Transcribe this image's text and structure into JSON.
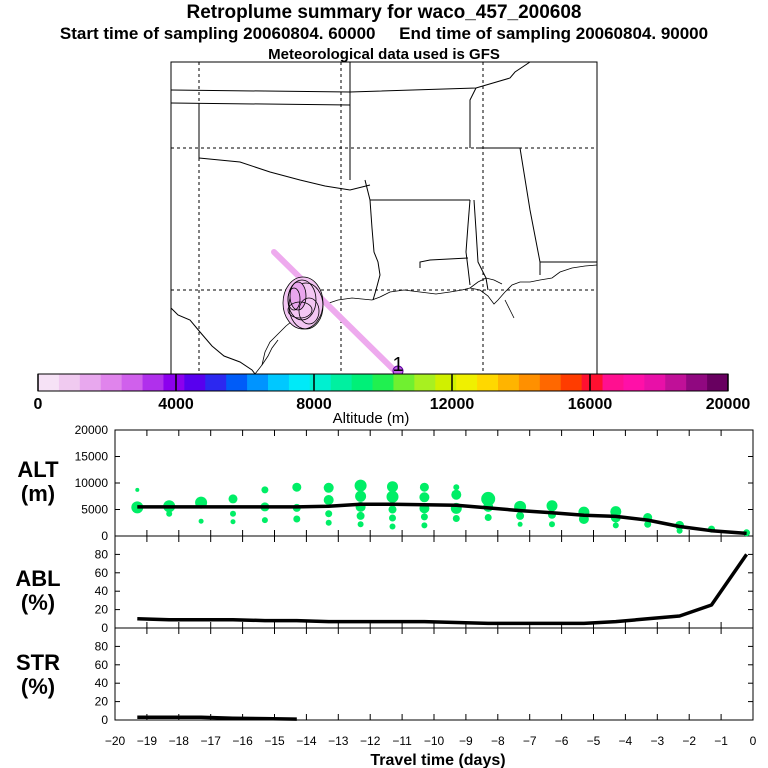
{
  "header": {
    "title": "Retroplume summary for waco_457_200608",
    "sampling_line": "Start time of sampling 20060804. 60000     End time of sampling 20060804. 90000",
    "met_line": "Meteorological data used is GFS"
  },
  "colors": {
    "ramp": [
      "#f6e2f6",
      "#f0caf0",
      "#e8a8ee",
      "#e084ec",
      "#d060ec",
      "#b030ec",
      "#8c00ee",
      "#5800ee",
      "#2c28f0",
      "#005cf8",
      "#0094ff",
      "#00c8ff",
      "#00eaf8",
      "#00f0d0",
      "#00f0a0",
      "#00f078",
      "#20f050",
      "#70f030",
      "#a8f020",
      "#d0f000",
      "#f0f000",
      "#ffd800",
      "#ffb400",
      "#ff9000",
      "#ff6800",
      "#ff3c00",
      "#ff1030",
      "#ff1090",
      "#ff10a8",
      "#e810a8",
      "#c01098",
      "#900880",
      "#680060"
    ],
    "marker": "#00ee66",
    "plume": "#eeaaee"
  },
  "chart_data": [
    {
      "type": "map",
      "title": "Retroplume trajectory map",
      "receptor_label": "1",
      "features": [
        "state borders",
        "coastline",
        "latitude/longitude grid (dashed)",
        "plume trace",
        "plume clusters"
      ]
    },
    {
      "type": "colorbar",
      "xlabel": "Altitude (m)",
      "range": [
        0,
        20000
      ],
      "tick_labels": [
        "0",
        "4000",
        "8000",
        "12000",
        "16000",
        "20000"
      ],
      "tick_values": [
        0,
        4000,
        8000,
        12000,
        16000,
        20000
      ]
    },
    {
      "type": "scatter",
      "panel": "ALT",
      "ylabel": [
        "ALT",
        "(m)"
      ],
      "xlim": [
        -20,
        0
      ],
      "ylim": [
        0,
        20000
      ],
      "yticks": [
        0,
        5000,
        10000,
        15000,
        20000
      ],
      "ytick_labels": [
        "0",
        "5000",
        "10000",
        "15000",
        "20000"
      ],
      "mean_line": {
        "x": [
          -19.3,
          -18.3,
          -17.3,
          -16.3,
          -15.3,
          -14.3,
          -13.3,
          -12.3,
          -11.3,
          -10.3,
          -9.3,
          -8.3,
          -7.3,
          -6.3,
          -5.3,
          -4.3,
          -3.3,
          -2.3,
          -1.3,
          -0.2
        ],
        "y": [
          5500,
          5500,
          5500,
          5500,
          5500,
          5500,
          5600,
          6000,
          6000,
          5900,
          5800,
          5300,
          4800,
          4400,
          3900,
          3700,
          3000,
          1800,
          1000,
          500
        ]
      },
      "points": [
        {
          "x": -19.3,
          "y": 5400,
          "r": 6
        },
        {
          "x": -19.3,
          "y": 8700,
          "r": 2
        },
        {
          "x": -18.3,
          "y": 5600,
          "r": 6
        },
        {
          "x": -18.3,
          "y": 4200,
          "r": 3
        },
        {
          "x": -17.3,
          "y": 6300,
          "r": 6
        },
        {
          "x": -17.3,
          "y": 2800,
          "r": 2.5
        },
        {
          "x": -16.3,
          "y": 7000,
          "r": 4.5
        },
        {
          "x": -16.3,
          "y": 4200,
          "r": 3
        },
        {
          "x": -16.3,
          "y": 2700,
          "r": 2.5
        },
        {
          "x": -15.3,
          "y": 8700,
          "r": 3.5
        },
        {
          "x": -15.3,
          "y": 5500,
          "r": 4.5
        },
        {
          "x": -15.3,
          "y": 3000,
          "r": 3
        },
        {
          "x": -14.3,
          "y": 9200,
          "r": 4.5
        },
        {
          "x": -14.3,
          "y": 5300,
          "r": 4
        },
        {
          "x": -14.3,
          "y": 3200,
          "r": 3.5
        },
        {
          "x": -13.3,
          "y": 9100,
          "r": 5
        },
        {
          "x": -13.3,
          "y": 6800,
          "r": 5
        },
        {
          "x": -13.3,
          "y": 4200,
          "r": 3.5
        },
        {
          "x": -13.3,
          "y": 2500,
          "r": 3
        },
        {
          "x": -12.3,
          "y": 9500,
          "r": 6
        },
        {
          "x": -12.3,
          "y": 7500,
          "r": 5.5
        },
        {
          "x": -12.3,
          "y": 5500,
          "r": 5
        },
        {
          "x": -12.3,
          "y": 3800,
          "r": 4
        },
        {
          "x": -12.3,
          "y": 2200,
          "r": 3
        },
        {
          "x": -11.3,
          "y": 9300,
          "r": 5.5
        },
        {
          "x": -11.3,
          "y": 7400,
          "r": 6
        },
        {
          "x": -11.3,
          "y": 5000,
          "r": 4
        },
        {
          "x": -11.3,
          "y": 3400,
          "r": 3.5
        },
        {
          "x": -11.3,
          "y": 1800,
          "r": 3
        },
        {
          "x": -10.3,
          "y": 9200,
          "r": 4.5
        },
        {
          "x": -10.3,
          "y": 7300,
          "r": 5
        },
        {
          "x": -10.3,
          "y": 5200,
          "r": 5
        },
        {
          "x": -10.3,
          "y": 3600,
          "r": 3.5
        },
        {
          "x": -10.3,
          "y": 2000,
          "r": 3
        },
        {
          "x": -9.3,
          "y": 9200,
          "r": 3
        },
        {
          "x": -9.3,
          "y": 7800,
          "r": 5
        },
        {
          "x": -9.3,
          "y": 5200,
          "r": 5.5
        },
        {
          "x": -9.3,
          "y": 3300,
          "r": 3.5
        },
        {
          "x": -8.3,
          "y": 7000,
          "r": 7
        },
        {
          "x": -8.3,
          "y": 5500,
          "r": 5
        },
        {
          "x": -8.3,
          "y": 3500,
          "r": 3.5
        },
        {
          "x": -7.3,
          "y": 5500,
          "r": 6
        },
        {
          "x": -7.3,
          "y": 3800,
          "r": 4
        },
        {
          "x": -7.3,
          "y": 2200,
          "r": 2.5
        },
        {
          "x": -6.3,
          "y": 5700,
          "r": 5.5
        },
        {
          "x": -6.3,
          "y": 4000,
          "r": 4
        },
        {
          "x": -6.3,
          "y": 2200,
          "r": 3
        },
        {
          "x": -5.3,
          "y": 4500,
          "r": 5.5
        },
        {
          "x": -5.3,
          "y": 3200,
          "r": 5
        },
        {
          "x": -4.3,
          "y": 4600,
          "r": 5.5
        },
        {
          "x": -4.3,
          "y": 3500,
          "r": 5
        },
        {
          "x": -4.3,
          "y": 2000,
          "r": 3
        },
        {
          "x": -3.3,
          "y": 3500,
          "r": 4.5
        },
        {
          "x": -3.3,
          "y": 2200,
          "r": 3.5
        },
        {
          "x": -2.3,
          "y": 2000,
          "r": 4.5
        },
        {
          "x": -2.3,
          "y": 1000,
          "r": 3
        },
        {
          "x": -1.3,
          "y": 1300,
          "r": 3.5
        },
        {
          "x": -0.2,
          "y": 600,
          "r": 3.5
        }
      ]
    },
    {
      "type": "line",
      "panel": "ABL",
      "ylabel": [
        "ABL",
        "(%)"
      ],
      "xlim": [
        -20,
        0
      ],
      "ylim": [
        0,
        100
      ],
      "yticks": [
        0,
        20,
        40,
        60,
        80
      ],
      "ytick_labels": [
        "0",
        "20",
        "40",
        "60",
        "80"
      ],
      "x": [
        -19.3,
        -18.3,
        -17.3,
        -16.3,
        -15.3,
        -14.3,
        -13.3,
        -12.3,
        -11.3,
        -10.3,
        -9.3,
        -8.3,
        -7.3,
        -6.3,
        -5.3,
        -4.3,
        -3.3,
        -2.3,
        -1.3,
        -0.2
      ],
      "y": [
        10,
        9,
        9,
        9,
        8,
        8,
        7,
        7,
        7,
        7,
        6,
        5,
        5,
        5,
        5,
        7,
        10,
        13,
        25,
        80
      ]
    },
    {
      "type": "line",
      "panel": "STR",
      "ylabel": [
        "STR",
        "(%)"
      ],
      "xlabel": "Travel time (days)",
      "xlim": [
        -20,
        0
      ],
      "ylim": [
        0,
        100
      ],
      "yticks": [
        0,
        20,
        40,
        60,
        80
      ],
      "ytick_labels": [
        "0",
        "20",
        "40",
        "60",
        "80"
      ],
      "xticks": [
        -20,
        -19,
        -18,
        -17,
        -16,
        -15,
        -14,
        -13,
        -12,
        -11,
        -10,
        -9,
        -8,
        -7,
        -6,
        -5,
        -4,
        -3,
        -2,
        -1,
        0
      ],
      "xtick_labels": [
        "−20",
        "−19",
        "−18",
        "−17",
        "−16",
        "−15",
        "−14",
        "−13",
        "−12",
        "−11",
        "−10",
        "−9",
        "−8",
        "−7",
        "−6",
        "−5",
        "−4",
        "−3",
        "−2",
        "−1",
        "0"
      ],
      "x": [
        -19.3,
        -18.3,
        -17.3,
        -16.3,
        -15.3,
        -14.3
      ],
      "y": [
        3,
        3,
        3,
        2,
        1.5,
        1
      ]
    }
  ]
}
